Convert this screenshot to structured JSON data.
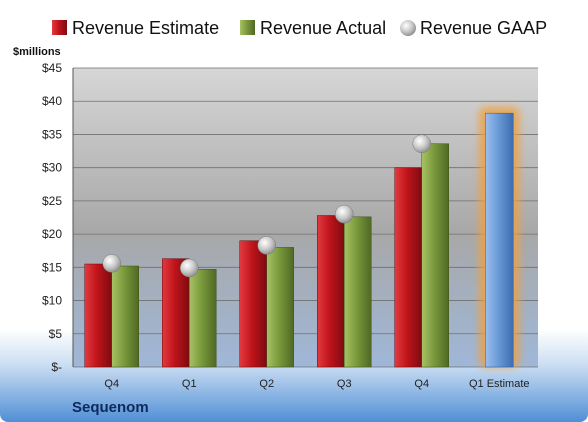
{
  "chart_data": {
    "type": "bar",
    "title": "",
    "unit_label": "$millions",
    "company": "Sequenom",
    "categories": [
      "Q4",
      "Q1",
      "Q2",
      "Q3",
      "Q4",
      "Q1 Estimate"
    ],
    "ylim": [
      0,
      45
    ],
    "y_ticks": [
      "$-",
      "$5",
      "$10",
      "$15",
      "$20",
      "$25",
      "$30",
      "$35",
      "$40",
      "$45"
    ],
    "y_tick_values": [
      0,
      5,
      10,
      15,
      20,
      25,
      30,
      35,
      40,
      45
    ],
    "grid": true,
    "legend_position": "top",
    "series": [
      {
        "name": "Revenue Estimate",
        "kind": "bar",
        "color": "#c0141b",
        "values": [
          15.5,
          16.3,
          19.0,
          22.8,
          30.0,
          null
        ]
      },
      {
        "name": "Revenue Actual",
        "kind": "bar",
        "color": "#7a9a3c",
        "values": [
          15.2,
          14.7,
          18.0,
          22.6,
          33.6,
          null
        ]
      },
      {
        "name": "Revenue GAAP",
        "kind": "marker",
        "color": "#c8c8c8",
        "values": [
          15.6,
          14.9,
          18.3,
          23.0,
          33.6,
          null
        ]
      }
    ],
    "forecast": {
      "category": "Q1 Estimate",
      "value": 38.2,
      "color": "#6c9bd8",
      "highlight": "#f0a040"
    }
  }
}
